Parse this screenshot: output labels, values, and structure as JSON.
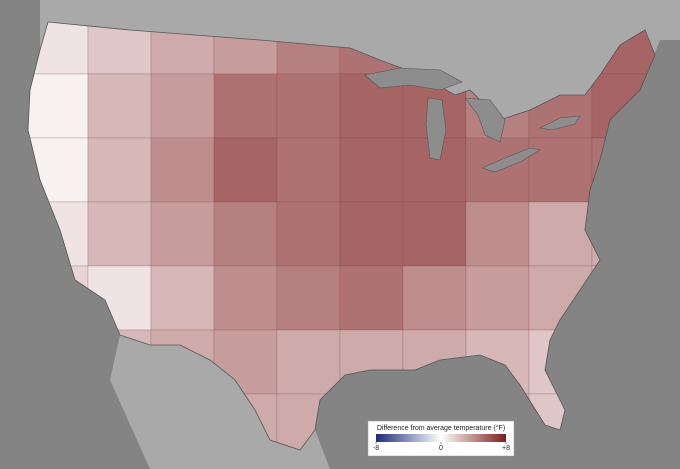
{
  "map": {
    "type": "choropleth",
    "values": [
      1,
      2,
      3,
      3.5,
      4.5,
      5,
      5,
      4,
      5,
      5.5,
      0.5,
      2.5,
      3.5,
      5,
      5,
      5.5,
      5.5,
      4.5,
      5,
      5.5,
      0.5,
      2.5,
      4,
      5.5,
      5,
      5.5,
      5.5,
      5,
      5,
      5,
      1,
      2.5,
      3.5,
      4.5,
      5,
      5.5,
      5.5,
      4,
      3,
      3,
      1.5,
      1,
      2.5,
      4,
      4.5,
      5,
      4,
      3.5,
      3,
      2.5,
      2,
      2.5,
      3,
      3.5,
      3,
      3,
      3,
      2.5,
      2,
      2,
      2,
      2.5,
      3,
      3,
      3,
      3,
      3,
      2.5,
      2,
      1.5
    ],
    "colorbar": {
      "title": "Difference from average temperature (°F)",
      "range": [
        -8,
        8
      ],
      "ticks": [
        -8,
        0,
        {
          "value": 8,
          "label": "+8"
        }
      ],
      "colors": {
        "low": "#1d2a78",
        "mid": "#ffffff",
        "high": "#7d1d1d"
      }
    }
  }
}
